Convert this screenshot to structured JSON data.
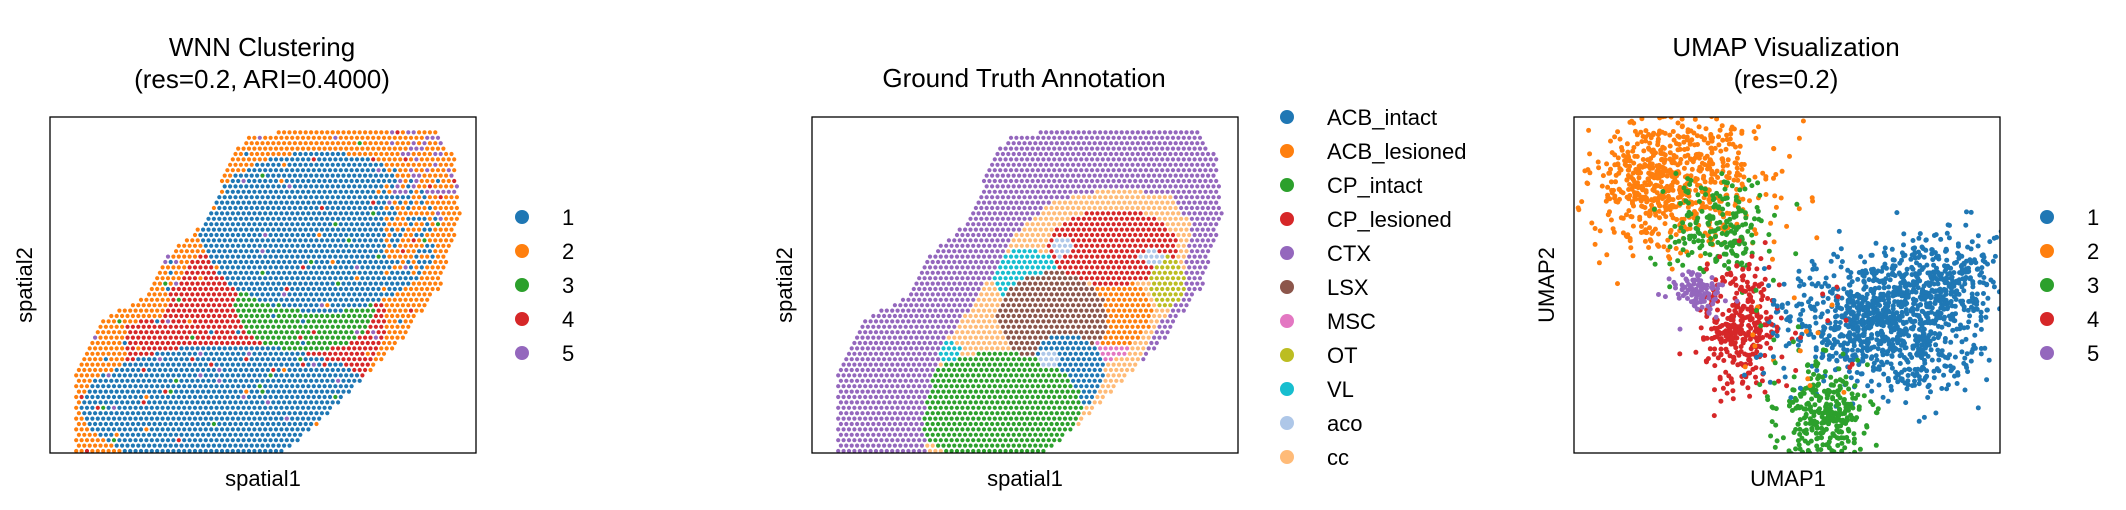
{
  "chart_data": [
    {
      "type": "scatter",
      "title": "WNN Clustering",
      "subtitle": "(res=0.2, ARI=0.4000)",
      "xlabel": "spatial1",
      "ylabel": "spatial2",
      "legend_position": "right",
      "legend": [
        {
          "label": "1",
          "color": "#1f77b4"
        },
        {
          "label": "2",
          "color": "#ff7f0e"
        },
        {
          "label": "3",
          "color": "#2ca02c"
        },
        {
          "label": "4",
          "color": "#d62728"
        },
        {
          "label": "5",
          "color": "#9467bd"
        }
      ]
    },
    {
      "type": "scatter",
      "title": "Ground Truth Annotation",
      "subtitle": "",
      "xlabel": "spatial1",
      "ylabel": "spatial2",
      "legend_position": "right",
      "legend": [
        {
          "label": "ACB_intact",
          "color": "#1f77b4"
        },
        {
          "label": "ACB_lesioned",
          "color": "#ff7f0e"
        },
        {
          "label": "CP_intact",
          "color": "#2ca02c"
        },
        {
          "label": "CP_lesioned",
          "color": "#d62728"
        },
        {
          "label": "CTX",
          "color": "#9467bd"
        },
        {
          "label": "LSX",
          "color": "#8c564b"
        },
        {
          "label": "MSC",
          "color": "#e377c2"
        },
        {
          "label": "OT",
          "color": "#bcbd22"
        },
        {
          "label": "VL",
          "color": "#17becf"
        },
        {
          "label": "aco",
          "color": "#aec7e8"
        },
        {
          "label": "cc",
          "color": "#ffbb78"
        }
      ]
    },
    {
      "type": "scatter",
      "title": "UMAP Visualization",
      "subtitle": "(res=0.2)",
      "xlabel": "UMAP1",
      "ylabel": "UMAP2",
      "legend_position": "right",
      "legend": [
        {
          "label": "1",
          "color": "#1f77b4"
        },
        {
          "label": "2",
          "color": "#ff7f0e"
        },
        {
          "label": "3",
          "color": "#2ca02c"
        },
        {
          "label": "4",
          "color": "#d62728"
        },
        {
          "label": "5",
          "color": "#9467bd"
        }
      ]
    }
  ]
}
